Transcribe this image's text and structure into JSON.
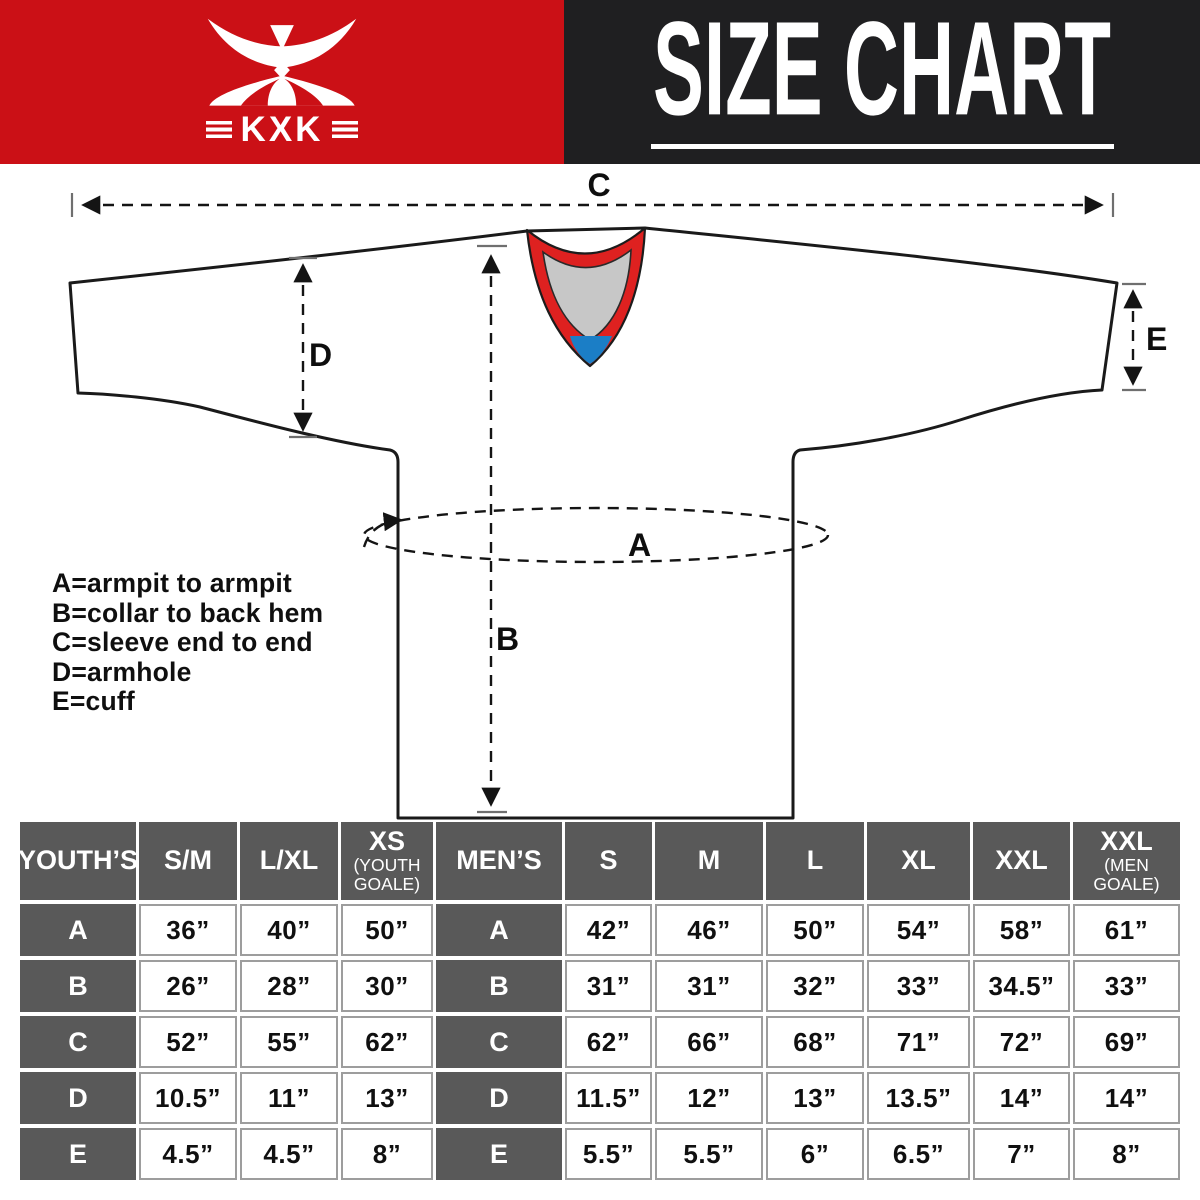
{
  "header": {
    "title": "SIZE CHART",
    "brand": {
      "name": "KXK",
      "flank_bars": "≡"
    }
  },
  "diagram": {
    "dim_labels": {
      "a": "A",
      "b": "B",
      "c": "C",
      "d": "D",
      "e": "E"
    },
    "legend": [
      "A=armpit to armpit",
      "B=collar to back hem",
      "C=sleeve end to end",
      "D=armhole",
      "E=cuff"
    ]
  },
  "size_table": {
    "youth": {
      "label": "YOUTH’S",
      "columns": [
        {
          "label": "S/M"
        },
        {
          "label": "L/XL"
        },
        {
          "label": "XS",
          "sub": "(YOUTH GOALE)"
        }
      ]
    },
    "men": {
      "label": "MEN’S",
      "columns": [
        {
          "label": "S"
        },
        {
          "label": "M"
        },
        {
          "label": "L"
        },
        {
          "label": "XL"
        },
        {
          "label": "XXL"
        },
        {
          "label": "XXL",
          "sub": "(MEN GOALE)"
        }
      ]
    },
    "rows": [
      {
        "label": "A",
        "youth": [
          "36”",
          "40”",
          "50”"
        ],
        "men": [
          "42”",
          "46”",
          "50”",
          "54”",
          "58”",
          "61”"
        ]
      },
      {
        "label": "B",
        "youth": [
          "26”",
          "28”",
          "30”"
        ],
        "men": [
          "31”",
          "31”",
          "32”",
          "33”",
          "34.5”",
          "33”"
        ]
      },
      {
        "label": "C",
        "youth": [
          "52”",
          "55”",
          "62”"
        ],
        "men": [
          "62”",
          "66”",
          "68”",
          "71”",
          "72”",
          "69”"
        ]
      },
      {
        "label": "D",
        "youth": [
          "10.5”",
          "11”",
          "13”"
        ],
        "men": [
          "11.5”",
          "12”",
          "13”",
          "13.5”",
          "14”",
          "14”"
        ]
      },
      {
        "label": "E",
        "youth": [
          "4.5”",
          "4.5”",
          "8”"
        ],
        "men": [
          "5.5”",
          "5.5”",
          "6”",
          "6.5”",
          "7”",
          "8”"
        ]
      }
    ]
  },
  "colors": {
    "brand_red": "#cb1016",
    "header_black": "#1f1f21",
    "cell_gray": "#595959",
    "collar_red": "#de2120",
    "collar_inner": "#c7c7c7",
    "collar_accent": "#1b7ec6"
  }
}
